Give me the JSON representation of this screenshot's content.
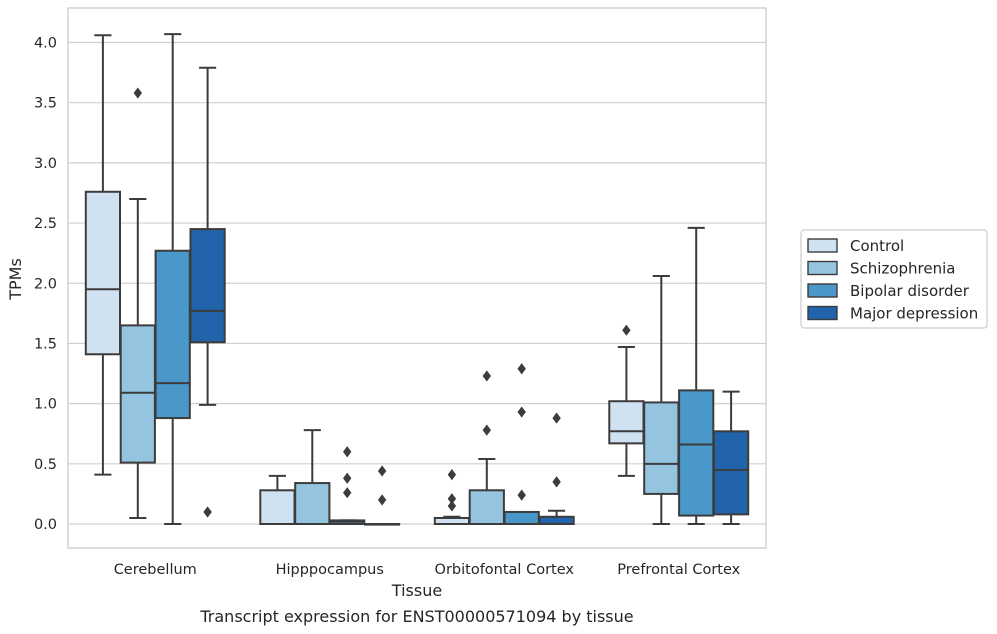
{
  "caption": "Transcript expression for ENST00000571094 by tissue",
  "chart_data": {
    "type": "boxplot",
    "xlabel": "Tissue",
    "ylabel": "TPMs",
    "ylim": [
      -0.2,
      4.28
    ],
    "yticks": [
      "0.0",
      "0.5",
      "1.0",
      "1.5",
      "2.0",
      "2.5",
      "3.0",
      "3.5",
      "4.0"
    ],
    "grid": "horizontal",
    "legend_position": "right",
    "categories": [
      "Cerebellum",
      "Hipppocampus",
      "Orbitofontal Cortex",
      "Prefrontal Cortex"
    ],
    "series": [
      {
        "name": "Control",
        "color": "#d0e1f2",
        "boxes": [
          {
            "min": 0.41,
            "q1": 1.41,
            "median": 1.95,
            "q3": 2.76,
            "max": 4.06,
            "outliers": []
          },
          {
            "min": 0.0,
            "q1": 0.0,
            "median": 0.0,
            "q3": 0.28,
            "max": 0.4,
            "outliers": []
          },
          {
            "min": 0.0,
            "q1": 0.0,
            "median": 0.0,
            "q3": 0.05,
            "max": 0.06,
            "outliers": [
              0.41,
              0.21,
              0.15
            ]
          },
          {
            "min": 0.4,
            "q1": 0.67,
            "median": 0.77,
            "q3": 1.02,
            "max": 1.47,
            "outliers": [
              1.61
            ]
          }
        ]
      },
      {
        "name": "Schizophrenia",
        "color": "#94c4df",
        "boxes": [
          {
            "min": 0.05,
            "q1": 0.51,
            "median": 1.09,
            "q3": 1.65,
            "max": 2.7,
            "outliers": [
              3.58
            ]
          },
          {
            "min": 0.0,
            "q1": 0.0,
            "median": 0.0,
            "q3": 0.34,
            "max": 0.78,
            "outliers": []
          },
          {
            "min": 0.0,
            "q1": 0.0,
            "median": 0.0,
            "q3": 0.28,
            "max": 0.54,
            "outliers": [
              1.23,
              0.78
            ]
          },
          {
            "min": 0.0,
            "q1": 0.25,
            "median": 0.5,
            "q3": 1.01,
            "max": 2.06,
            "outliers": []
          }
        ]
      },
      {
        "name": "Bipolar disorder",
        "color": "#4a98c9",
        "boxes": [
          {
            "min": 0.0,
            "q1": 0.88,
            "median": 1.17,
            "q3": 2.27,
            "max": 4.07,
            "outliers": []
          },
          {
            "min": 0.0,
            "q1": 0.0,
            "median": 0.02,
            "q3": 0.03,
            "max": 0.03,
            "outliers": [
              0.6,
              0.38,
              0.26
            ]
          },
          {
            "min": 0.0,
            "q1": 0.0,
            "median": 0.0,
            "q3": 0.1,
            "max": 0.1,
            "outliers": [
              1.29,
              0.93,
              0.24
            ]
          },
          {
            "min": 0.0,
            "q1": 0.07,
            "median": 0.66,
            "q3": 1.11,
            "max": 2.46,
            "outliers": []
          }
        ]
      },
      {
        "name": "Major depression",
        "color": "#2164ab",
        "boxes": [
          {
            "min": 0.99,
            "q1": 1.51,
            "median": 1.77,
            "q3": 2.45,
            "max": 3.79,
            "outliers": [
              0.1
            ]
          },
          {
            "min": 0.0,
            "q1": 0.0,
            "median": 0.0,
            "q3": 0.0,
            "max": 0.0,
            "outliers": [
              0.44,
              0.2
            ]
          },
          {
            "min": 0.0,
            "q1": 0.0,
            "median": 0.0,
            "q3": 0.06,
            "max": 0.11,
            "outliers": [
              0.88,
              0.35
            ]
          },
          {
            "min": 0.0,
            "q1": 0.08,
            "median": 0.45,
            "q3": 0.77,
            "max": 1.1,
            "outliers": []
          }
        ]
      }
    ]
  }
}
